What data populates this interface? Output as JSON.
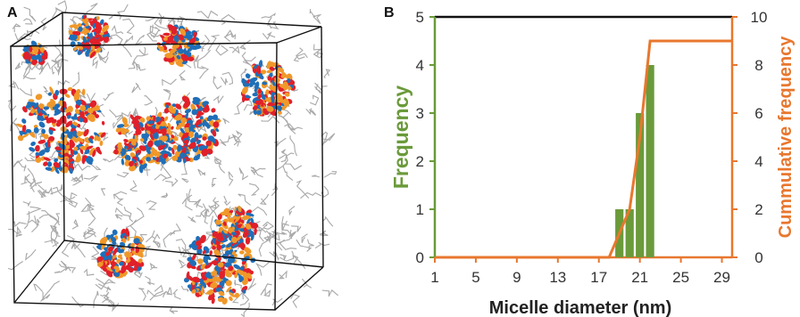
{
  "panels": {
    "a_label": "A",
    "b_label": "B"
  },
  "colors": {
    "bar": "#6a9a3a",
    "cumulative": "#e8772e",
    "frequency_axis": "#6a9a3a",
    "cumulative_axis": "#e8772e",
    "top_line": "#111111",
    "molecule_red": "#e0202a",
    "molecule_blue": "#1f6fb8",
    "molecule_orange": "#f0982a",
    "molecule_gray": "#a8a8a8"
  },
  "chart_data": {
    "type": "bar",
    "title": "",
    "xlabel": "Micelle diameter (nm)",
    "ylabel": "Frequency",
    "y2label": "Cummulative frequency",
    "x_ticks": [
      "1",
      "5",
      "9",
      "13",
      "17",
      "21",
      "25",
      "29"
    ],
    "y_ticks": [
      "0",
      "1",
      "2",
      "3",
      "4",
      "5"
    ],
    "y2_ticks": [
      "0",
      "2",
      "4",
      "6",
      "8",
      "10"
    ],
    "xlim": [
      1,
      30
    ],
    "ylim": [
      0,
      5
    ],
    "y2lim": [
      0,
      10
    ],
    "grid": false,
    "bars": [
      {
        "x": 19,
        "value": 1
      },
      {
        "x": 20,
        "value": 1
      },
      {
        "x": 21,
        "value": 3
      },
      {
        "x": 22,
        "value": 4
      }
    ],
    "series": [
      {
        "axis": "right",
        "type": "line",
        "x": [
          1,
          18,
          19,
          20,
          21,
          22,
          30
        ],
        "values": [
          0,
          0,
          1,
          2,
          5,
          9,
          9
        ]
      }
    ]
  }
}
